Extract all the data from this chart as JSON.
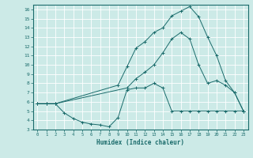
{
  "title": "",
  "xlabel": "Humidex (Indice chaleur)",
  "bg_color": "#cceae7",
  "line_color": "#1a6b6b",
  "grid_color": "#ffffff",
  "xlim": [
    -0.5,
    23.5
  ],
  "ylim": [
    3,
    16.5
  ],
  "xticks": [
    0,
    1,
    2,
    3,
    4,
    5,
    6,
    7,
    8,
    9,
    10,
    11,
    12,
    13,
    14,
    15,
    16,
    17,
    18,
    19,
    20,
    21,
    22,
    23
  ],
  "yticks": [
    3,
    4,
    5,
    6,
    7,
    8,
    9,
    10,
    11,
    12,
    13,
    14,
    15,
    16
  ],
  "line1_x": [
    0,
    1,
    2,
    3,
    4,
    5,
    6,
    7,
    8,
    9,
    10,
    11,
    12,
    13,
    14,
    15,
    16,
    17,
    18,
    19,
    20,
    21,
    22,
    23
  ],
  "line1_y": [
    5.8,
    5.8,
    5.8,
    4.8,
    4.2,
    3.8,
    3.6,
    3.5,
    3.3,
    4.3,
    7.3,
    7.5,
    7.5,
    8.0,
    7.5,
    5.0,
    5.0,
    5.0,
    5.0,
    5.0,
    5.0,
    5.0,
    5.0,
    5.0
  ],
  "line2_x": [
    0,
    1,
    2,
    10,
    11,
    12,
    13,
    14,
    15,
    16,
    17,
    18,
    19,
    20,
    21,
    22,
    23
  ],
  "line2_y": [
    5.8,
    5.8,
    5.8,
    7.5,
    8.5,
    9.2,
    10.0,
    11.3,
    12.8,
    13.5,
    12.8,
    10.0,
    8.0,
    8.3,
    7.8,
    7.0,
    5.0
  ],
  "line3_x": [
    0,
    1,
    2,
    9,
    10,
    11,
    12,
    13,
    14,
    15,
    16,
    17,
    18,
    19,
    20,
    21,
    22,
    23
  ],
  "line3_y": [
    5.8,
    5.8,
    5.8,
    7.8,
    9.8,
    11.8,
    12.5,
    13.5,
    14.0,
    15.3,
    15.8,
    16.3,
    15.2,
    13.0,
    11.0,
    8.3,
    7.0,
    5.0
  ]
}
